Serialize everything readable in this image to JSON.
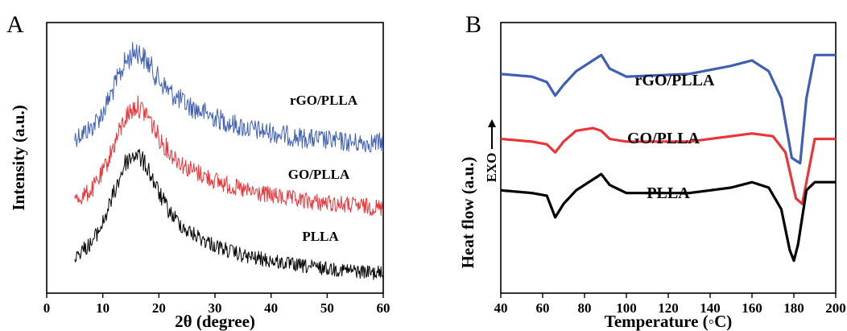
{
  "chart_data": [
    {
      "panel": "A",
      "type": "line",
      "xlabel": "2θ (degree)",
      "ylabel": "Intensity (a.u.)",
      "xlim": [
        0,
        60
      ],
      "xticks": [
        0,
        10,
        20,
        30,
        40,
        50,
        60
      ],
      "grid": false,
      "series": [
        {
          "name": "rGO/PLLA",
          "color": "#3f5fb4",
          "x": [
            5,
            8,
            10,
            12,
            14,
            16,
            18,
            20,
            22,
            25,
            30,
            35,
            40,
            45,
            50,
            55,
            60
          ],
          "y": [
            0.58,
            0.62,
            0.68,
            0.78,
            0.88,
            0.93,
            0.88,
            0.81,
            0.76,
            0.71,
            0.66,
            0.62,
            0.6,
            0.58,
            0.57,
            0.56,
            0.56
          ]
        },
        {
          "name": "GO/PLLA",
          "color": "#e8363a",
          "x": [
            5,
            8,
            10,
            12,
            14,
            16,
            18,
            20,
            22,
            25,
            30,
            35,
            40,
            45,
            50,
            55,
            60
          ],
          "y": [
            0.33,
            0.37,
            0.44,
            0.55,
            0.66,
            0.71,
            0.67,
            0.58,
            0.52,
            0.46,
            0.41,
            0.37,
            0.35,
            0.33,
            0.32,
            0.31,
            0.3
          ]
        },
        {
          "name": "PLLA",
          "color": "#000000",
          "x": [
            5,
            8,
            10,
            12,
            14,
            16,
            18,
            20,
            22,
            25,
            30,
            35,
            40,
            45,
            50,
            55,
            60
          ],
          "y": [
            0.11,
            0.16,
            0.24,
            0.36,
            0.48,
            0.52,
            0.46,
            0.36,
            0.28,
            0.21,
            0.15,
            0.11,
            0.09,
            0.07,
            0.06,
            0.05,
            0.04
          ]
        }
      ]
    },
    {
      "panel": "B",
      "type": "line",
      "xlabel": "Temperature (◦C)",
      "ylabel": "Heat flow (a.u.)",
      "exo_label": "EXO",
      "xlim": [
        40,
        200
      ],
      "xticks": [
        40,
        60,
        80,
        100,
        120,
        140,
        160,
        180,
        200
      ],
      "grid": false,
      "series": [
        {
          "name": "rGO/PLLA",
          "color": "#3f5fb4",
          "x": [
            40,
            55,
            62,
            66,
            70,
            76,
            84,
            88,
            92,
            100,
            130,
            150,
            160,
            168,
            174,
            179,
            183,
            186,
            190,
            200
          ],
          "y": [
            0.81,
            0.8,
            0.78,
            0.73,
            0.77,
            0.82,
            0.86,
            0.88,
            0.83,
            0.8,
            0.81,
            0.84,
            0.86,
            0.82,
            0.72,
            0.5,
            0.48,
            0.72,
            0.88,
            0.88
          ]
        },
        {
          "name": "GO/PLLA",
          "color": "#e8363a",
          "x": [
            40,
            55,
            62,
            66,
            70,
            76,
            84,
            88,
            92,
            100,
            130,
            150,
            160,
            170,
            176,
            181,
            184,
            187,
            190,
            200
          ],
          "y": [
            0.57,
            0.56,
            0.55,
            0.52,
            0.56,
            0.6,
            0.61,
            0.6,
            0.57,
            0.56,
            0.56,
            0.58,
            0.59,
            0.58,
            0.52,
            0.35,
            0.33,
            0.45,
            0.57,
            0.57
          ]
        },
        {
          "name": "PLLA",
          "color": "#000000",
          "x": [
            40,
            55,
            62,
            66,
            70,
            76,
            84,
            88,
            92,
            100,
            130,
            150,
            160,
            168,
            174,
            178,
            180,
            182,
            186,
            190,
            200
          ],
          "y": [
            0.38,
            0.37,
            0.36,
            0.28,
            0.33,
            0.38,
            0.42,
            0.44,
            0.4,
            0.37,
            0.37,
            0.39,
            0.41,
            0.39,
            0.31,
            0.16,
            0.12,
            0.18,
            0.38,
            0.41,
            0.41
          ]
        }
      ]
    }
  ]
}
